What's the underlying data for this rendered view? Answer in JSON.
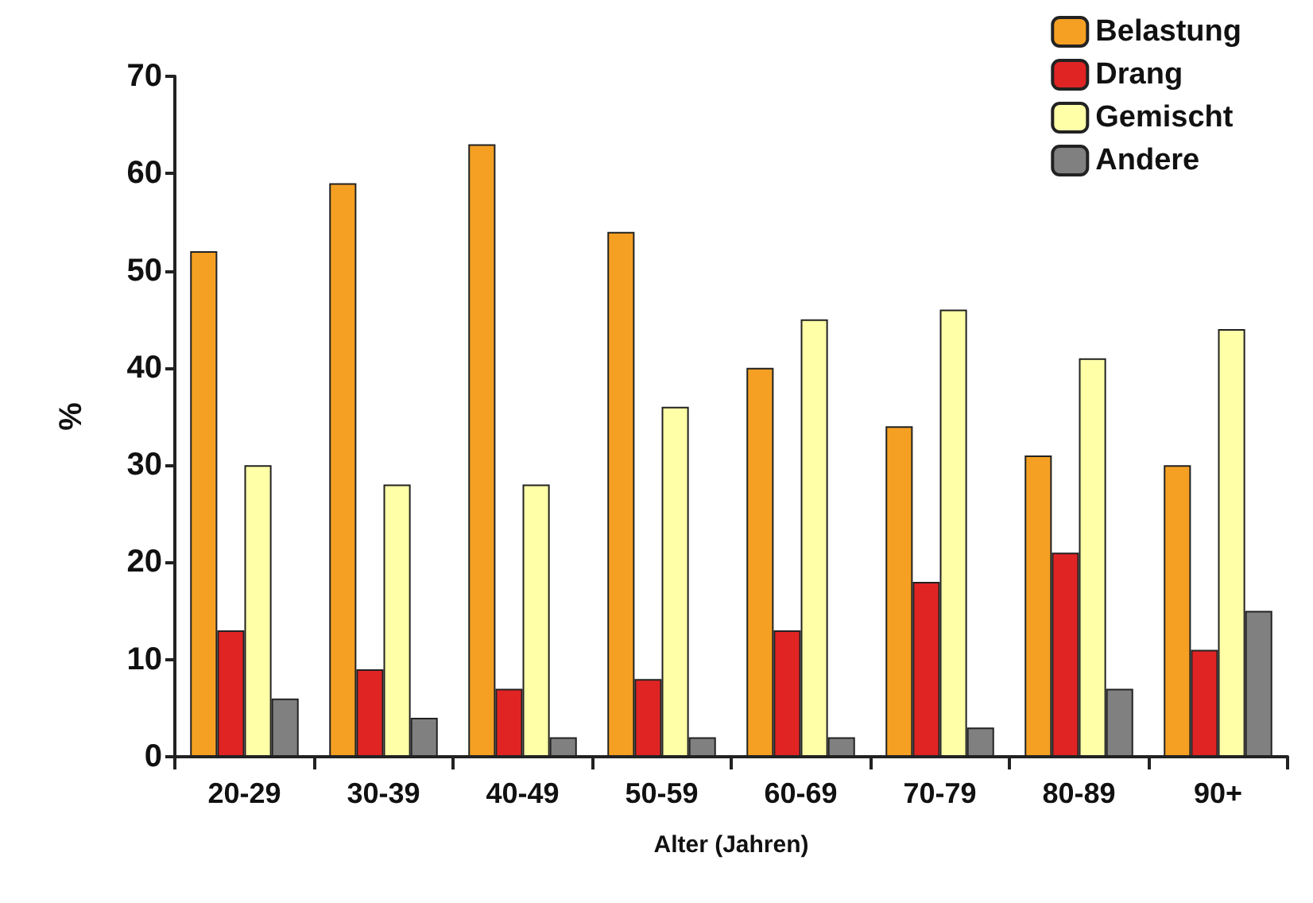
{
  "chart_data": {
    "type": "bar",
    "xlabel": "Alter (Jahren)",
    "ylabel": "%",
    "categories": [
      "20-29",
      "30-39",
      "40-49",
      "50-59",
      "60-69",
      "70-79",
      "80-89",
      "90+"
    ],
    "series": [
      {
        "name": "Belastung",
        "color": "#f5a023",
        "values": [
          52,
          59,
          63,
          54,
          40,
          34,
          31,
          30
        ]
      },
      {
        "name": "Drang",
        "color": "#e02424",
        "values": [
          13,
          9,
          7,
          8,
          13,
          18,
          21,
          11
        ]
      },
      {
        "name": "Gemischt",
        "color": "#ffffa8",
        "values": [
          30,
          28,
          28,
          36,
          45,
          46,
          41,
          44
        ]
      },
      {
        "name": "Andere",
        "color": "#808080",
        "values": [
          6,
          4,
          2,
          2,
          2,
          3,
          7,
          15
        ]
      }
    ],
    "ylim": [
      0,
      70
    ],
    "yticks": [
      0,
      10,
      20,
      30,
      40,
      50,
      60,
      70
    ],
    "grid": false,
    "legend": "top right"
  }
}
